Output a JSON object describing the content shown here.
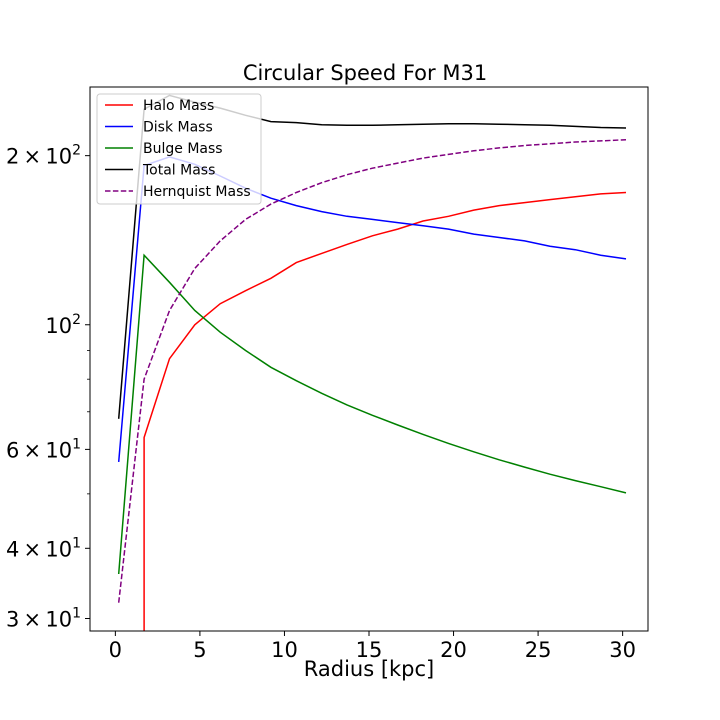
{
  "chart_data": {
    "type": "line",
    "title": "Circular Speed For M31",
    "xlabel": "Radius [kpc]",
    "ylabel": "",
    "yscale": "log",
    "xlim": [
      -1.5,
      31.5
    ],
    "ylim": [
      28.5,
      265
    ],
    "x_ticks": [
      0,
      5,
      10,
      15,
      20,
      25,
      30
    ],
    "x_tick_labels": [
      "0",
      "5",
      "10",
      "15",
      "20",
      "25",
      "30"
    ],
    "y_ticks": [
      {
        "value": 30,
        "mantissa": "3",
        "exponent": "1"
      },
      {
        "value": 40,
        "mantissa": "4",
        "exponent": "1"
      },
      {
        "value": 60,
        "mantissa": "6",
        "exponent": "1"
      },
      {
        "value": 100,
        "mantissa": "",
        "exponent": "2"
      },
      {
        "value": 200,
        "mantissa": "2",
        "exponent": "2"
      }
    ],
    "y_minor_ticks": [
      50,
      70,
      80,
      90
    ],
    "grid": false,
    "legend_position": "top-left",
    "series": [
      {
        "name": "Halo Mass",
        "color": "#ff0000",
        "dash": "solid",
        "x": [
          1.7,
          1.7,
          3.2,
          4.7,
          6.2,
          7.7,
          9.2,
          10.7,
          12.2,
          13.7,
          15.2,
          16.7,
          18.2,
          19.7,
          21.2,
          22.7,
          24.2,
          25.7,
          27.2,
          28.7,
          30.2
        ],
        "y": [
          28.5,
          63,
          87,
          100,
          109,
          115,
          121,
          129,
          134,
          139,
          144,
          148,
          153,
          156,
          160,
          163,
          165,
          167,
          169,
          171,
          172
        ]
      },
      {
        "name": "Disk Mass",
        "color": "#0000ff",
        "dash": "solid",
        "x": [
          0.2,
          1.7,
          3.2,
          4.7,
          6.2,
          7.7,
          9.2,
          10.7,
          12.2,
          13.7,
          15.2,
          16.7,
          18.2,
          19.7,
          21.2,
          22.7,
          24.2,
          25.7,
          27.2,
          28.7,
          30.2
        ],
        "y": [
          57,
          192,
          199,
          193,
          184,
          175,
          168,
          163,
          159,
          156,
          154,
          152,
          150,
          148,
          145,
          143,
          141,
          138,
          136,
          133,
          131
        ]
      },
      {
        "name": "Bulge Mass",
        "color": "#008000",
        "dash": "solid",
        "x": [
          0.2,
          1.7,
          3.2,
          4.7,
          6.2,
          7.7,
          9.2,
          10.7,
          12.2,
          13.7,
          15.2,
          16.7,
          18.2,
          19.7,
          21.2,
          22.7,
          24.2,
          25.7,
          27.2,
          28.7,
          30.2
        ],
        "y": [
          36,
          133,
          119,
          106,
          97,
          90,
          84,
          79.5,
          75.5,
          72,
          69,
          66.3,
          63.8,
          61.5,
          59.4,
          57.5,
          55.8,
          54.2,
          52.8,
          51.5,
          50.2
        ]
      },
      {
        "name": "Total Mass",
        "color": "#000000",
        "dash": "solid",
        "x": [
          0.2,
          1.7,
          3.2,
          4.7,
          6.2,
          7.7,
          9.2,
          10.7,
          12.2,
          13.7,
          15.2,
          16.7,
          18.2,
          19.7,
          21.2,
          22.7,
          24.2,
          25.7,
          27.2,
          28.7,
          30.2
        ],
        "y": [
          68,
          242,
          256,
          249,
          243,
          236,
          230,
          229,
          227,
          226.5,
          226.5,
          227,
          227.5,
          228,
          228,
          227.5,
          227,
          226.5,
          225.5,
          224.5,
          224
        ]
      },
      {
        "name": "Hernquist Mass",
        "color": "#800080",
        "dash": "dashed",
        "x": [
          0.2,
          1.7,
          3.2,
          4.7,
          6.2,
          7.7,
          9.2,
          10.7,
          12.2,
          13.7,
          15.2,
          16.7,
          18.2,
          19.7,
          21.2,
          22.7,
          24.2,
          25.7,
          27.2,
          28.7,
          30.2
        ],
        "y": [
          32,
          80,
          106,
          126,
          141,
          154,
          164,
          172,
          179,
          185,
          190,
          194,
          198,
          201,
          204,
          206.5,
          208.5,
          210,
          211.5,
          212.5,
          213.5
        ]
      }
    ]
  }
}
